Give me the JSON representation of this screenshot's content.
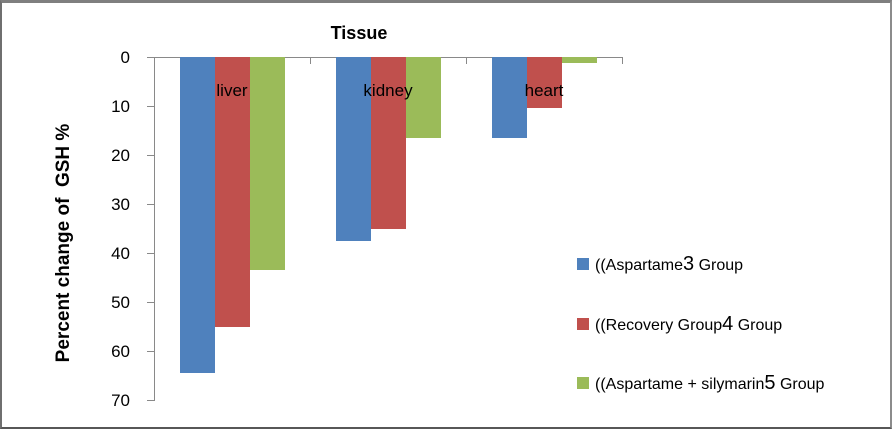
{
  "chart_data": {
    "type": "bar",
    "title": "Tissue",
    "ylabel": "Percent change of  GSH %",
    "categories": [
      "liver",
      "kidney",
      "heart"
    ],
    "series": [
      {
        "name": "((Aspartame3 Group",
        "name_pre": "((Aspartame",
        "name_num": "3",
        "name_post": " Group",
        "color": "#4F81BD",
        "values": [
          64.5,
          37.5,
          16.5
        ]
      },
      {
        "name": "((Recovery Group4 Group",
        "name_pre": "((Recovery Group",
        "name_num": "4",
        "name_post": " Group",
        "color": "#C0504D",
        "values": [
          55,
          35,
          10.5
        ]
      },
      {
        "name": "((Aspartame + silymarin5 Group",
        "name_pre": "((Aspartame + silymarin",
        "name_num": "5",
        "name_post": " Group",
        "color": "#9BBB59",
        "values": [
          43.5,
          16.5,
          1.2
        ]
      }
    ],
    "y_ticks": [
      0,
      10,
      20,
      30,
      40,
      50,
      60,
      70
    ],
    "y_tick_labels": [
      "0",
      "10",
      "20",
      "30",
      "40",
      "50",
      "60",
      "70"
    ],
    "ylim": [
      0,
      70
    ],
    "bars_direction": "down",
    "grid": false,
    "legend_position": "right",
    "axis_color": "#898989"
  }
}
